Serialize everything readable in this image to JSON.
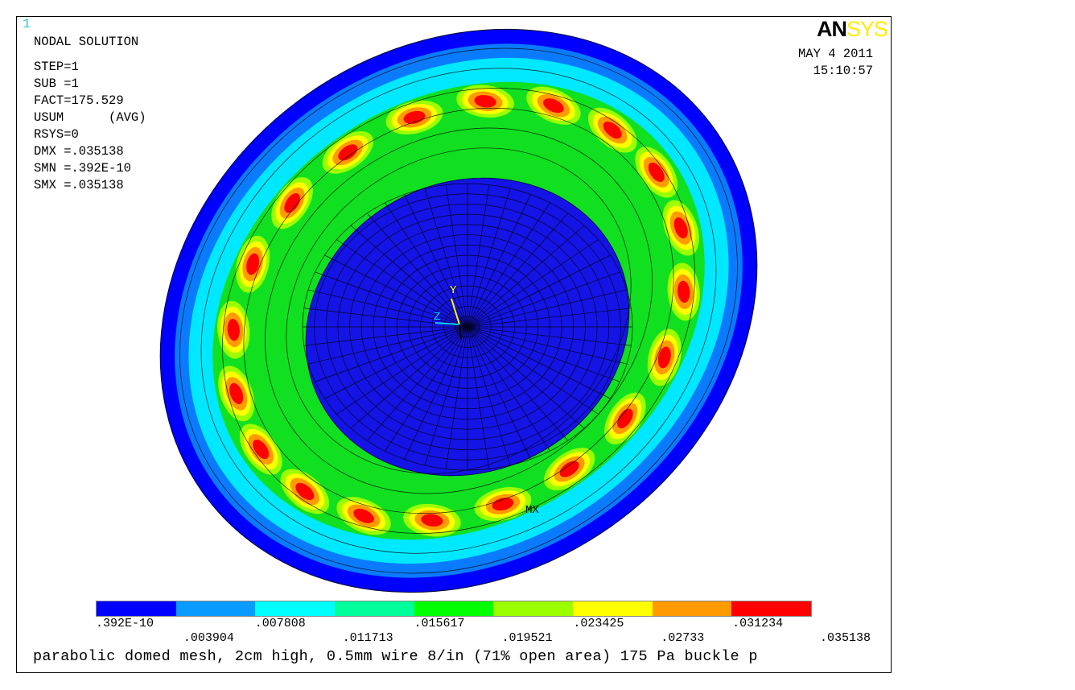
{
  "window_number": "1",
  "logo": {
    "part1": "AN",
    "part2": "SYS"
  },
  "info_lines": [
    "NODAL SOLUTION",
    "",
    "STEP=1",
    "SUB =1",
    "FACT=175.529",
    "USUM      (AVG)",
    "RSYS=0",
    "DMX =.035138",
    "SMN =.392E-10",
    "SMX =.035138"
  ],
  "date": "MAY  4 2011",
  "time": "15:10:57",
  "triad": {
    "y_label": "Y",
    "z_label": "Z",
    "mx_label": "MX"
  },
  "legend": {
    "colors": [
      "#0000ff",
      "#0a9bff",
      "#00ffff",
      "#00ff9b",
      "#00ff00",
      "#9bff00",
      "#ffff00",
      "#ff9b00",
      "#ff0000"
    ],
    "upper_ticks": [
      ".392E-10",
      ".007808",
      ".015617",
      ".023425",
      ".031234"
    ],
    "lower_ticks": [
      ".003904",
      ".011713",
      ".019521",
      ".02733",
      ".035138"
    ]
  },
  "caption": "parabolic domed mesh, 2cm high, 0.5mm wire 8/in (71% open area) 175 Pa buckle p"
}
